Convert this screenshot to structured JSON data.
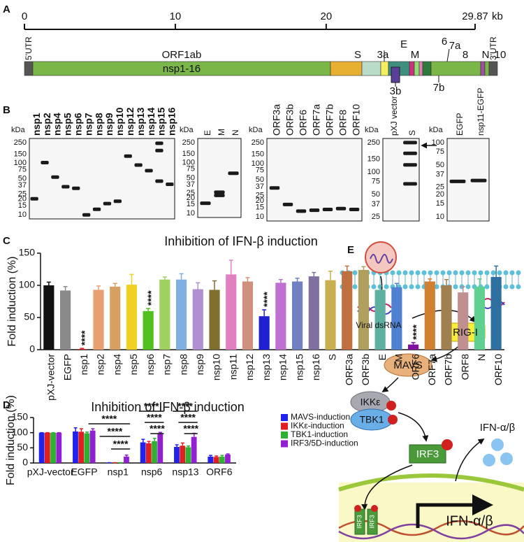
{
  "panel_labels": [
    "A",
    "B",
    "C",
    "D",
    "E"
  ],
  "genome": {
    "xlim": [
      0,
      29.87
    ],
    "xticks": [
      0,
      10,
      20,
      29.87
    ],
    "unit": "kb",
    "genes": [
      "5'UTR",
      "ORF1ab",
      "nsp1-16",
      "S",
      "3a",
      "3b",
      "E",
      "M",
      "6",
      "7a",
      "7b",
      "8",
      "N",
      "10",
      "3'UTR"
    ]
  },
  "blots": [
    {
      "unit": "kDa",
      "markers": [
        250,
        150,
        100,
        75,
        50,
        37,
        25,
        20,
        15,
        10
      ],
      "lanes": [
        "nsp1",
        "nsp2",
        "nsp4",
        "nsp5",
        "nsp6",
        "nsp7",
        "nsp8",
        "nsp9",
        "nsp10",
        "nsp12",
        "nsp13",
        "nsp14",
        "nsp15",
        "nsp16"
      ]
    },
    {
      "unit": "kDa",
      "markers": [
        250,
        150,
        100,
        75,
        50,
        37,
        25,
        20,
        15,
        10
      ],
      "lanes": [
        "E",
        "M",
        "N"
      ]
    },
    {
      "unit": "kDa",
      "markers": [
        250,
        150,
        100,
        75,
        50,
        37,
        25,
        20,
        15,
        10
      ],
      "lanes": [
        "ORF3a",
        "ORF3b",
        "ORF6",
        "ORF7a",
        "ORF7b",
        "ORF8",
        "ORF10"
      ]
    },
    {
      "unit": "kDa",
      "markers": [
        250,
        150,
        100,
        75,
        50,
        37,
        25
      ],
      "lanes": [
        "pXJ vector",
        "S"
      ]
    },
    {
      "unit": "kDa",
      "markers": [
        100,
        75,
        50,
        37,
        25,
        20,
        15,
        10
      ],
      "lanes": [
        "EGFP",
        "nsp11-EGFP"
      ]
    }
  ],
  "chart_data": [
    {
      "type": "bar",
      "title": "Inhibition of IFN-β induction",
      "y_label": "Fold induction (%)",
      "categories": [
        "pXJ-vector",
        "EGFP",
        "nsp1",
        "nsp2",
        "nsp4",
        "nsp5",
        "nsp6",
        "nsp7",
        "nsp8",
        "nsp9",
        "nsp10",
        "nsp11",
        "nsp12",
        "nsp13",
        "nsp14",
        "nsp15",
        "nsp16",
        "S",
        "ORF3a",
        "ORF3b",
        "E",
        "M",
        "ORF6",
        "ORF7a",
        "ORF7b",
        "ORF8",
        "N",
        "ORF10"
      ],
      "values": [
        100,
        92,
        1,
        93,
        98,
        101,
        60,
        109,
        109,
        94,
        93,
        117,
        106,
        52,
        104,
        106,
        114,
        108,
        122,
        124,
        93,
        97,
        8,
        106,
        100,
        89,
        98,
        113
      ],
      "errors": [
        5,
        6,
        1,
        6,
        5,
        16,
        4,
        4,
        9,
        10,
        14,
        22,
        6,
        10,
        5,
        5,
        6,
        14,
        8,
        5,
        6,
        6,
        3,
        4,
        9,
        9,
        12,
        17
      ],
      "colors": [
        "#111111",
        "#8a8a8a",
        "#e02020",
        "#e8a070",
        "#d8a060",
        "#f0d020",
        "#50c020",
        "#a0d060",
        "#80b0e0",
        "#b090d0",
        "#807030",
        "#e080c0",
        "#d09080",
        "#2020d0",
        "#c070d0",
        "#7080c0",
        "#8070a0",
        "#c8b050",
        "#c07040",
        "#b0a060",
        "#60b0a0",
        "#5080d0",
        "#8010a0",
        "#d08030",
        "#a08050",
        "#c09090",
        "#60d090",
        "#3070a0"
      ],
      "annotations": [
        null,
        null,
        "****",
        null,
        null,
        null,
        "****",
        null,
        null,
        null,
        null,
        null,
        null,
        "****",
        null,
        null,
        null,
        null,
        null,
        null,
        null,
        null,
        "****",
        null,
        null,
        null,
        null,
        null
      ],
      "ylim": [
        0,
        150
      ],
      "yticks": [
        0,
        50,
        100,
        150
      ]
    },
    {
      "type": "grouped_bar",
      "title": "Inhibition of IFN-β induction",
      "y_label": "Fold induction (%)",
      "categories": [
        "pXJ-vector",
        "EGFP",
        "nsp1",
        "nsp6",
        "nsp13",
        "ORF6"
      ],
      "series": [
        {
          "name": "MAVS-induction",
          "color": "#2222ee",
          "values": [
            100,
            104,
            1,
            68,
            53,
            21
          ],
          "errors": [
            0,
            12,
            0,
            10,
            7,
            4
          ]
        },
        {
          "name": "IKKε-induction",
          "color": "#e02020",
          "values": [
            100,
            103,
            1,
            65,
            57,
            20
          ],
          "errors": [
            0,
            10,
            0,
            6,
            9,
            3
          ]
        },
        {
          "name": "TBK1-induction",
          "color": "#30b030",
          "values": [
            100,
            98,
            1,
            72,
            52,
            21
          ],
          "errors": [
            0,
            4,
            0,
            9,
            4,
            4
          ]
        },
        {
          "name": "IRF3/5D-induction",
          "color": "#9020d0",
          "values": [
            100,
            107,
            21,
            97,
            86,
            28
          ],
          "errors": [
            0,
            6,
            5,
            4,
            12,
            2
          ]
        }
      ],
      "annotations": [
        "****",
        "****",
        "****",
        "****",
        "****",
        "****",
        "****",
        "****",
        "****"
      ],
      "ylim": [
        0,
        150
      ],
      "yticks": [
        0,
        50,
        100,
        150
      ],
      "legend": "top-right"
    }
  ],
  "pathway": {
    "labels": [
      "Viral dsRNA",
      "RIG-I",
      "MAVS",
      "IKKε",
      "TBK1",
      "IRF3",
      "IFN-α/β",
      "IRF3",
      "IRF3",
      "IFN-α/β"
    ]
  }
}
